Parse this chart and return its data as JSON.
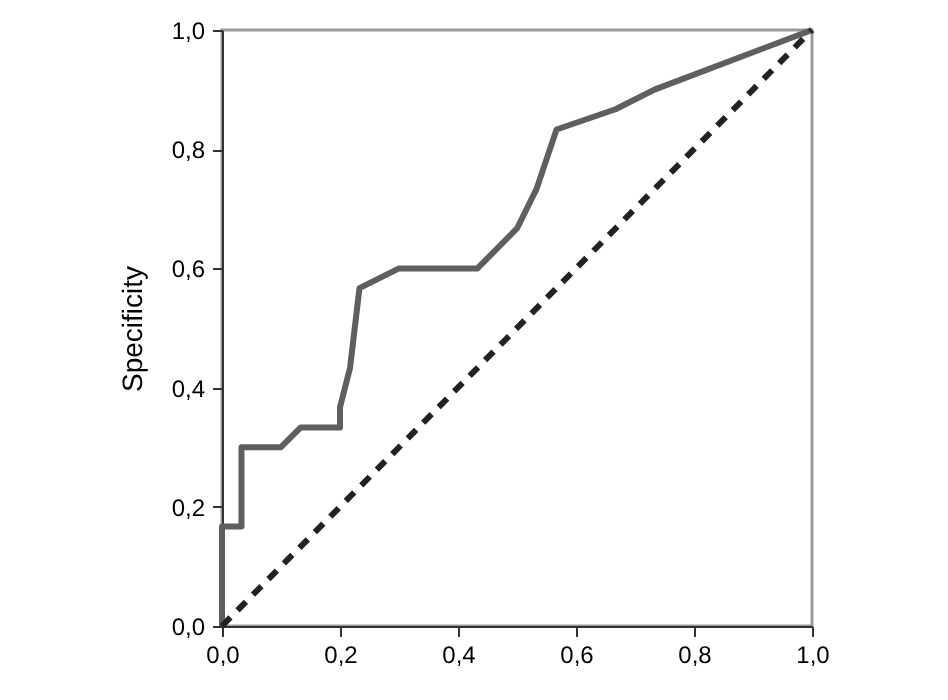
{
  "chart_data": {
    "type": "line",
    "ylabel": "Specificity",
    "xlim": [
      0,
      1
    ],
    "ylim": [
      0,
      1
    ],
    "xticks": [
      {
        "value": 0,
        "label": "0,0"
      },
      {
        "value": 0.2,
        "label": "0,2"
      },
      {
        "value": 0.4,
        "label": "0,4"
      },
      {
        "value": 0.6,
        "label": "0,6"
      },
      {
        "value": 0.8,
        "label": "0,8"
      },
      {
        "value": 1,
        "label": "1,0"
      }
    ],
    "yticks": [
      {
        "value": 0,
        "label": "0,0"
      },
      {
        "value": 0.2,
        "label": "0,2"
      },
      {
        "value": 0.4,
        "label": "0,4"
      },
      {
        "value": 0.6,
        "label": "0,6"
      },
      {
        "value": 0.8,
        "label": "0,8"
      },
      {
        "value": 1,
        "label": "1,0"
      }
    ],
    "grid": false,
    "marker": "none",
    "series": [
      {
        "color": "#5f5f5f",
        "line_style": "solid",
        "x": [
          0,
          0,
          0.033,
          0.033,
          0.1,
          0.133,
          0.2,
          0.2,
          0.217,
          0.233,
          0.3,
          0.433,
          0.5,
          0.533,
          0.567,
          0.667,
          0.733,
          1
        ],
        "values": [
          0,
          0.167,
          0.167,
          0.3,
          0.3,
          0.333,
          0.333,
          0.367,
          0.433,
          0.567,
          0.6,
          0.6,
          0.667,
          0.733,
          0.833,
          0.867,
          0.9,
          1
        ]
      },
      {
        "color": "#222222",
        "line_style": "dashed",
        "x": [
          0,
          1
        ],
        "values": [
          0,
          1
        ]
      }
    ]
  }
}
